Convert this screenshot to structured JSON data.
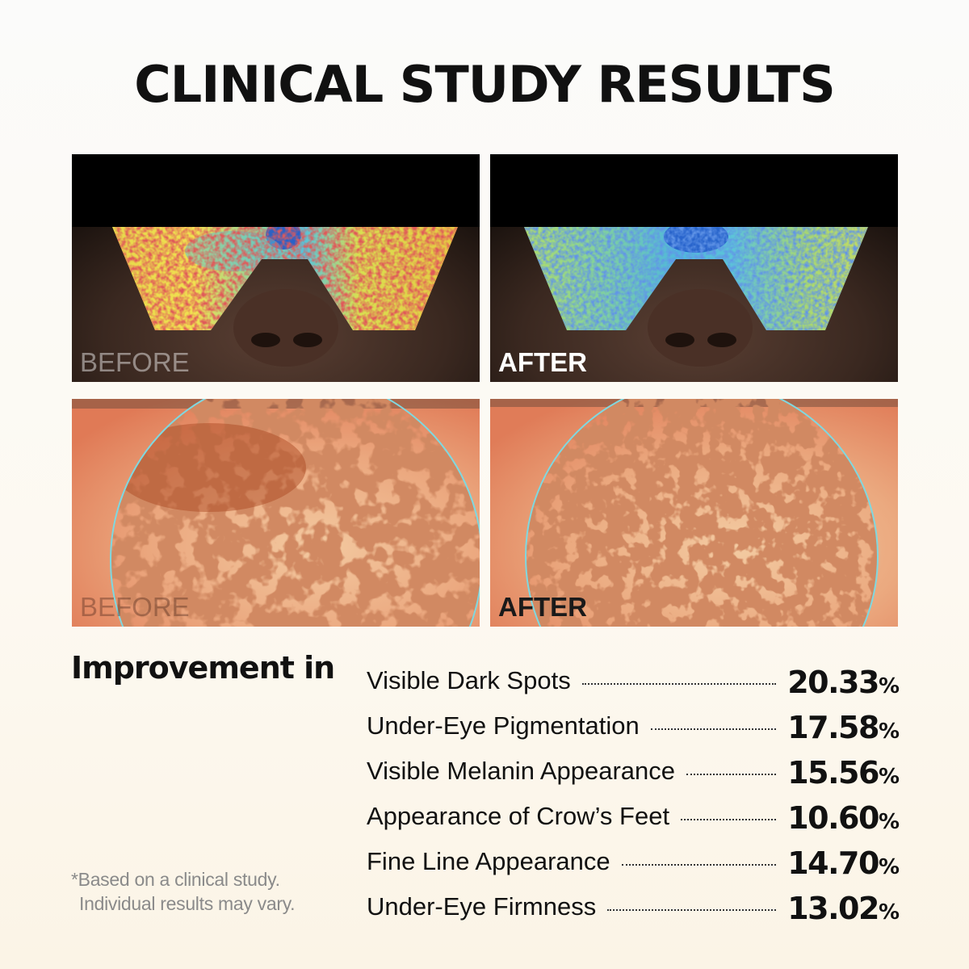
{
  "title": "CLINICAL STUDY RESULTS",
  "panels": {
    "top_before_label": "BEFORE",
    "top_after_label": "AFTER",
    "bottom_before_label": "BEFORE",
    "bottom_after_label": "AFTER"
  },
  "improvement": {
    "heading": "Improvement in",
    "metrics": [
      {
        "label": "Visible Dark Spots",
        "value": "20.33",
        "unit": "%"
      },
      {
        "label": "Under-Eye Pigmentation",
        "value": "17.58",
        "unit": "%"
      },
      {
        "label": "Visible Melanin Appearance",
        "value": "15.56",
        "unit": "%"
      },
      {
        "label": "Appearance of Crow’s Feet",
        "value": "10.60",
        "unit": "%"
      },
      {
        "label": "Fine Line Appearance",
        "value": "14.70",
        "unit": "%"
      },
      {
        "label": "Under-Eye Firmness",
        "value": "13.02",
        "unit": "%"
      }
    ]
  },
  "footnote": {
    "line1": "*Based on a clinical study.",
    "line2": "Individual results may vary."
  },
  "colors": {
    "heatmap_yellow": "#e6e84a",
    "heatmap_cyan": "#4fc4dc",
    "heatmap_blue": "#1e4fc8",
    "heatmap_red": "#c8202a",
    "skin_orange": "#e89a6e",
    "spot_brown": "#a2401e",
    "circle_cyan": "#7fd8e0"
  }
}
